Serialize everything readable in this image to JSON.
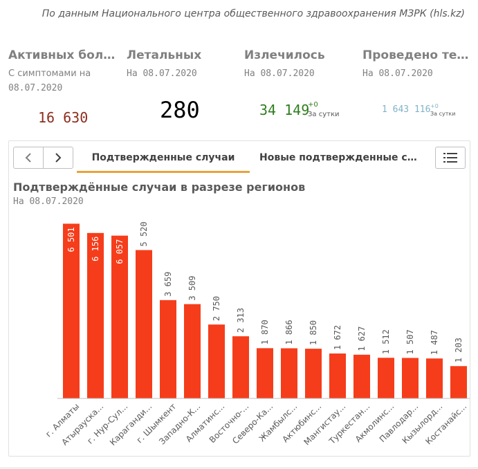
{
  "source": "По данным Национального центра общественного здравоохранения МЗРК (hls.kz)",
  "kpis": {
    "active": {
      "title": "Активных больных",
      "subtitle": "С симптомами на",
      "date": "08.07.2020",
      "value": "16 630",
      "color": "#8c2d1e"
    },
    "deaths": {
      "title": "Летальных",
      "subtitle": "На 08.07.2020",
      "value": "280",
      "color": "#000000"
    },
    "recovered": {
      "title": "Излечилось",
      "subtitle": "На 08.07.2020",
      "value": "34 149",
      "delta": "+0",
      "delta_label": "За сутки",
      "color": "#2e7d1e"
    },
    "tests": {
      "title": "Проведено тестов",
      "subtitle": "На 08.07.2020",
      "value": "1 643 116",
      "delta": "+0",
      "delta_label": "За сутки",
      "color": "#7fb3c8"
    }
  },
  "tabs": {
    "items": [
      {
        "label": "Подтвержденные случаи",
        "active": true
      },
      {
        "label": "Новые подтвержденные случаи",
        "active": false
      }
    ]
  },
  "chart": {
    "title": "Подтверждённые случаи в разрезе регионов",
    "subtitle": "На 08.07.2020"
  },
  "chart_data": {
    "type": "bar",
    "categories": [
      "г. Алматы",
      "Атырауская",
      "г. Нур-Султан",
      "Карагандинская",
      "г. Шымкент",
      "Западно-Казахстанская",
      "Алматинская",
      "Восточно-Казахстанская",
      "Северо-Казахстанская",
      "Жамбылская",
      "Актюбинская",
      "Мангистауская",
      "Туркестанская",
      "Акмолинская",
      "Павлодарская",
      "Кызылординская",
      "Костанайская"
    ],
    "category_labels": [
      "г. Алматы",
      "Атырауска...",
      "г. Нур-Сул...",
      "Карaганди...",
      "г. Шымкент",
      "Западно-К...",
      "Алматинс...",
      "Восточно-...",
      "Северо-Ка...",
      "Жамбылс...",
      "Актюбинс...",
      "Мангистау...",
      "Туркестан...",
      "Акмолинс...",
      "Павлодар...",
      "Кызылорд...",
      "Костанайс..."
    ],
    "values": [
      6501,
      6156,
      6057,
      5520,
      3659,
      3509,
      2750,
      2313,
      1870,
      1866,
      1850,
      1672,
      1627,
      1512,
      1507,
      1487,
      1203
    ],
    "value_labels": [
      "6 501",
      "6 156",
      "6 057",
      "5 520",
      "3 659",
      "3 509",
      "2 750",
      "2 313",
      "1 870",
      "1 866",
      "1 850",
      "1 672",
      "1 627",
      "1 512",
      "1 507",
      "1 487",
      "1 203"
    ],
    "ylim": [
      0,
      7000
    ],
    "bar_color": "#f53d1b",
    "grid": false
  }
}
